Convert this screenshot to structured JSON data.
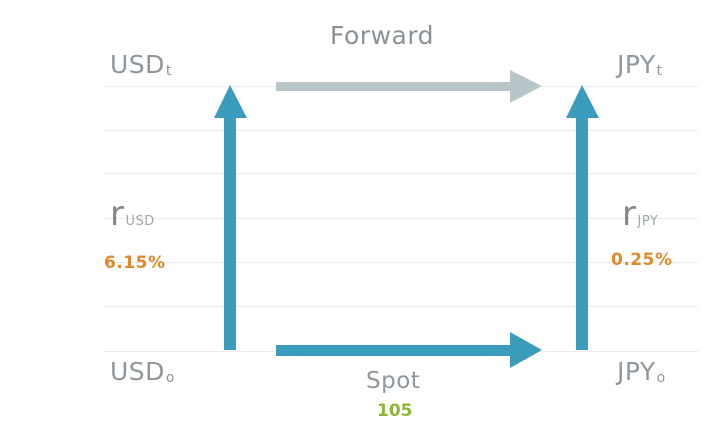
{
  "colors": {
    "arrow_blue": "#3b9bbb",
    "arrow_gray": "#b9c6c9",
    "rate_orange": "#e08a2b",
    "spot_green": "#8db53a",
    "label_gray": "#8f979c"
  },
  "corners": {
    "usd_t": {
      "base": "USD",
      "sub": "t"
    },
    "jpy_t": {
      "base": "JPY",
      "sub": "t"
    },
    "usd_0": {
      "base": "USD",
      "sub": "o"
    },
    "jpy_0": {
      "base": "JPY",
      "sub": "o"
    }
  },
  "forward": {
    "label": "Forward"
  },
  "spot": {
    "label": "Spot",
    "value": "105"
  },
  "rates": {
    "usd": {
      "symbol": "r",
      "sub": "USD",
      "value": "6.15%"
    },
    "jpy": {
      "symbol": "r",
      "sub": "JPY",
      "value": "0.25%"
    }
  }
}
